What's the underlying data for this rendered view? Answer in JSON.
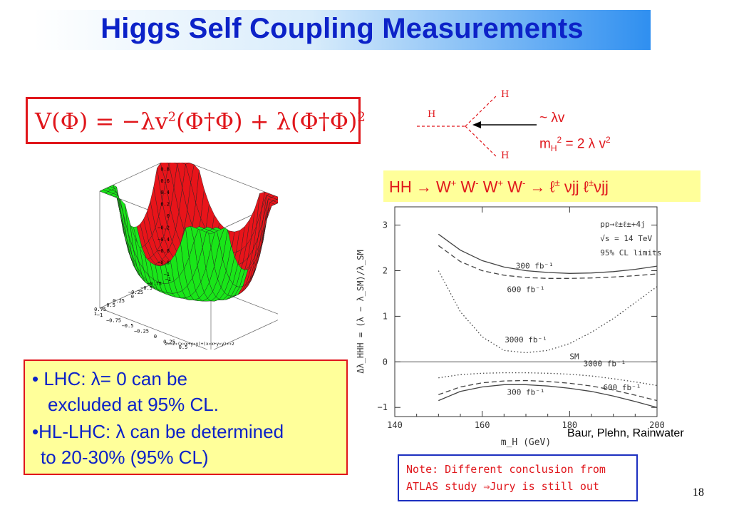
{
  "title": "Higgs Self Coupling Measurements",
  "formula": {
    "lhs": "V(Φ)",
    "eq": " = ",
    "term1": "−λv",
    "term1_exp": "2",
    "term1_rest": "(Φ†Φ)",
    "plus": " + ",
    "term2": "λ(Φ†Φ)",
    "term2_exp": "2"
  },
  "feynman": {
    "label_left": "H",
    "label_top": "H",
    "label_bottom": "H",
    "coupling_label": "~ λv",
    "mass_relation_pre": "m",
    "mass_relation_sub": "H",
    "mass_relation_sup": "2",
    "mass_relation_rest": " = 2 λ v",
    "mass_relation_sup2": "2"
  },
  "hh_channel": {
    "p1": "HH → W",
    "s1": "+",
    "p2": " W",
    "s2": "-",
    "p3": " W",
    "s3": "+",
    "p4": " W",
    "s4": "-",
    "p5": " → ℓ",
    "s5": "±",
    "p6": " νjj  ℓ",
    "s6": "±",
    "p7": "νjj"
  },
  "potential_plot": {
    "z_ticks": [
      "1",
      "0.8",
      "0.6",
      "0.4",
      "0.2",
      "0",
      "−0.2",
      "−0.4",
      "−0.6",
      "−0.8",
      "−1"
    ],
    "left_ticks": [
      "1",
      "0.75",
      "0.5",
      "0.25",
      "0",
      "−0.25",
      "−0.5",
      "−0.75",
      "−1"
    ],
    "bottom_ticks": [
      "−1",
      "−0.75",
      "−0.5",
      "−0.25",
      "0",
      "0.25",
      "0.5",
      "0.75",
      "1"
    ],
    "caption": "z=−2∗(x∗x+y∗y)+(x∗x+y∗y)∗∗2"
  },
  "chart_data": {
    "type": "line",
    "xlabel": "m_H (GeV)",
    "ylabel": "Δλ_HHH = (λ − λ_SM)/λ_SM",
    "xlim": [
      140,
      200
    ],
    "ylim": [
      -1.2,
      3.4
    ],
    "x_ticks": [
      "140",
      "160",
      "180",
      "200"
    ],
    "y_ticks": [
      "3",
      "2",
      "1",
      "0",
      "−1"
    ],
    "annotations": [
      "pp→ℓ±ℓ±+4j",
      "√s = 14 TeV",
      "95% CL limits"
    ],
    "sm_label": "SM",
    "series": [
      {
        "name": "300 fb⁻¹",
        "style": "solid",
        "x": [
          150,
          155,
          160,
          165,
          170,
          175,
          180,
          185,
          190,
          195,
          200
        ],
        "y": [
          2.8,
          2.45,
          2.22,
          2.08,
          2.0,
          1.96,
          1.94,
          1.95,
          1.98,
          2.03,
          2.1
        ]
      },
      {
        "name": "600 fb⁻¹",
        "style": "dashed",
        "x": [
          150,
          155,
          160,
          165,
          170,
          175,
          180,
          185,
          190,
          195,
          200
        ],
        "y": [
          2.55,
          2.2,
          2.0,
          1.9,
          1.85,
          1.83,
          1.83,
          1.84,
          1.86,
          1.89,
          1.93
        ]
      },
      {
        "name": "3000 fb⁻¹",
        "style": "dotted",
        "x": [
          150,
          155,
          160,
          165,
          170,
          175,
          180,
          185,
          190,
          195,
          200
        ],
        "y": [
          2.0,
          1.1,
          0.55,
          0.25,
          0.2,
          0.25,
          0.4,
          0.65,
          0.95,
          1.3,
          1.65
        ]
      },
      {
        "name": "300 fb⁻¹",
        "style": "solid",
        "x": [
          150,
          155,
          160,
          165,
          170,
          175,
          180,
          185,
          190,
          195,
          200
        ],
        "y": [
          -0.85,
          -0.65,
          -0.55,
          -0.5,
          -0.5,
          -0.53,
          -0.58,
          -0.65,
          -0.75,
          -0.87,
          -1.0
        ]
      },
      {
        "name": "600 fb⁻¹",
        "style": "dashed",
        "x": [
          150,
          155,
          160,
          165,
          170,
          175,
          180,
          185,
          190,
          195,
          200
        ],
        "y": [
          -0.72,
          -0.55,
          -0.46,
          -0.42,
          -0.41,
          -0.43,
          -0.47,
          -0.53,
          -0.62,
          -0.73,
          -0.85
        ]
      },
      {
        "name": "3000 fb⁻¹",
        "style": "dotted",
        "x": [
          150,
          155,
          160,
          165,
          170,
          175,
          180,
          185,
          190,
          195,
          200
        ],
        "y": [
          -0.35,
          -0.28,
          -0.25,
          -0.24,
          -0.24,
          -0.25,
          -0.27,
          -0.31,
          -0.37,
          -0.44,
          -0.52
        ]
      }
    ]
  },
  "lhc": {
    "line1": "• LHC: λ= 0 can be",
    "line2": "excluded at 95% CL.",
    "line3": "•HL-LHC: λ can be determined",
    "line4": "to 20-30%  (95% CL)"
  },
  "citation": "Baur, Plehn, Rainwater",
  "note": {
    "line1": "Note: Different conclusion from",
    "line2": "ATLAS study ⇒Jury is still out"
  },
  "page_number": "18",
  "colors": {
    "title": "#0c22c8",
    "accent_red": "#e0161b",
    "highlight_yellow": "#ffff9a",
    "surface_red": "#e8141a",
    "surface_green": "#19e619"
  }
}
